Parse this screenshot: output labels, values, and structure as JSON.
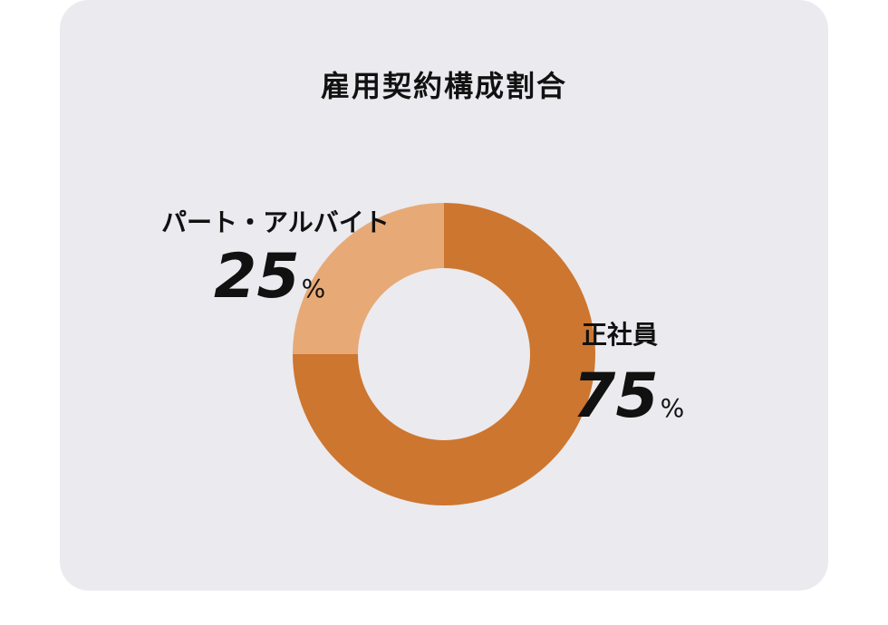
{
  "chart_data": {
    "type": "pie",
    "title": "雇用契約構成割合",
    "categories": [
      "正社員",
      "パート・アルバイト"
    ],
    "values": [
      75,
      25
    ],
    "unit": "%",
    "colors": [
      "#cd762f",
      "#e7aa77"
    ],
    "legend": "none"
  }
}
